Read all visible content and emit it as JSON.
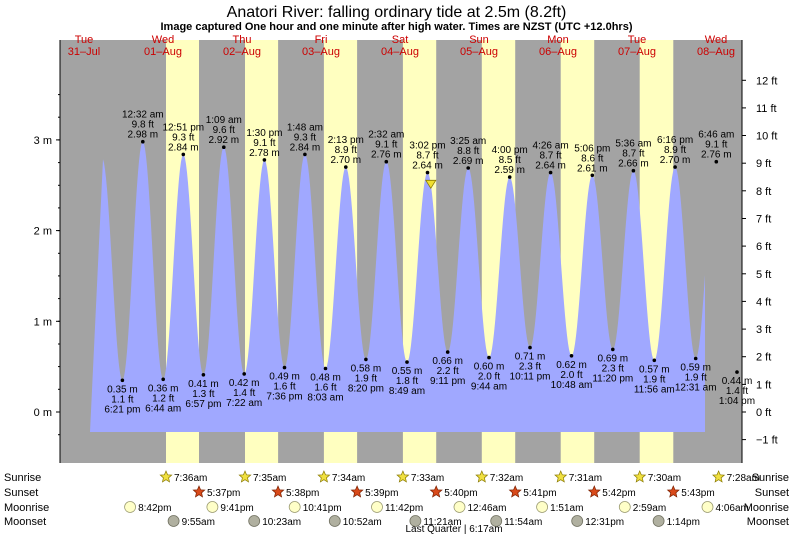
{
  "header": {
    "title": "Anatori River: falling  ordinary tide at 2.5m (8.2ft)",
    "subtitle": "Image captured One hour and one minute after high water. Times are NZST (UTC +12.0hrs)"
  },
  "colors": {
    "night": "#a3a3a3",
    "day": "#ffffc0",
    "water": "#a0a8ff",
    "day_label": "#cc0000",
    "marker": "#f0e030"
  },
  "chart_data": {
    "type": "area",
    "y_axis_left": {
      "unit": "m",
      "ticks": [
        "0 m",
        "1 m",
        "2 m",
        "3 m"
      ],
      "values": [
        0,
        1,
        2,
        3
      ]
    },
    "y_axis_right": {
      "unit": "ft",
      "ticks": [
        "−1 ft",
        "0 ft",
        "1 ft",
        "2 ft",
        "3 ft",
        "4 ft",
        "5 ft",
        "6 ft",
        "7 ft",
        "8 ft",
        "9 ft",
        "10 ft",
        "11 ft",
        "12 ft"
      ],
      "values": [
        -1,
        0,
        1,
        2,
        3,
        4,
        5,
        6,
        7,
        8,
        9,
        10,
        11,
        12
      ]
    },
    "ylim_m": [
      -0.3,
      3.65
    ],
    "x_start": "2018-07-31T00:00",
    "x_end": "2018-08-08T24:00",
    "days": [
      {
        "weekday": "Tue",
        "date": "31–Jul"
      },
      {
        "weekday": "Wed",
        "date": "01–Aug"
      },
      {
        "weekday": "Thu",
        "date": "02–Aug"
      },
      {
        "weekday": "Fri",
        "date": "03–Aug"
      },
      {
        "weekday": "Sat",
        "date": "04–Aug"
      },
      {
        "weekday": "Sun",
        "date": "05–Aug"
      },
      {
        "weekday": "Mon",
        "date": "06–Aug"
      },
      {
        "weekday": "Tue",
        "date": "07–Aug"
      },
      {
        "weekday": "Wed",
        "date": "08–Aug"
      }
    ],
    "tides": [
      {
        "kind": "low",
        "day": 0,
        "time": "6:21 pm",
        "m": "0.35 m",
        "ft": "1.1 ft",
        "value": 0.35
      },
      {
        "kind": "high",
        "day": 1,
        "time": "12:32 am",
        "m": "2.98 m",
        "ft": "9.8 ft",
        "value": 2.98
      },
      {
        "kind": "low",
        "day": 1,
        "time": "6:44 am",
        "m": "0.36 m",
        "ft": "1.2 ft",
        "value": 0.36
      },
      {
        "kind": "high",
        "day": 1,
        "time": "12:51 pm",
        "m": "2.84 m",
        "ft": "9.3 ft",
        "value": 2.84
      },
      {
        "kind": "low",
        "day": 1,
        "time": "6:57 pm",
        "m": "0.41 m",
        "ft": "1.3 ft",
        "value": 0.41
      },
      {
        "kind": "high",
        "day": 2,
        "time": "1:09 am",
        "m": "2.92 m",
        "ft": "9.6 ft",
        "value": 2.92
      },
      {
        "kind": "low",
        "day": 2,
        "time": "7:22 am",
        "m": "0.42 m",
        "ft": "1.4 ft",
        "value": 0.42
      },
      {
        "kind": "high",
        "day": 2,
        "time": "1:30 pm",
        "m": "2.78 m",
        "ft": "9.1 ft",
        "value": 2.78
      },
      {
        "kind": "low",
        "day": 2,
        "time": "7:36 pm",
        "m": "0.49 m",
        "ft": "1.6 ft",
        "value": 0.49
      },
      {
        "kind": "high",
        "day": 3,
        "time": "1:48 am",
        "m": "2.84 m",
        "ft": "9.3 ft",
        "value": 2.84
      },
      {
        "kind": "low",
        "day": 3,
        "time": "8:03 am",
        "m": "0.48 m",
        "ft": "1.6 ft",
        "value": 0.48
      },
      {
        "kind": "high",
        "day": 3,
        "time": "2:13 pm",
        "m": "2.70 m",
        "ft": "8.9 ft",
        "value": 2.7
      },
      {
        "kind": "low",
        "day": 3,
        "time": "8:20 pm",
        "m": "0.58 m",
        "ft": "1.9 ft",
        "value": 0.58
      },
      {
        "kind": "high",
        "day": 4,
        "time": "2:32 am",
        "m": "2.76 m",
        "ft": "9.1 ft",
        "value": 2.76
      },
      {
        "kind": "low",
        "day": 4,
        "time": "8:49 am",
        "m": "0.55 m",
        "ft": "1.8 ft",
        "value": 0.55
      },
      {
        "kind": "high",
        "day": 4,
        "time": "3:02 pm",
        "m": "2.64 m",
        "ft": "8.7 ft",
        "value": 2.64
      },
      {
        "kind": "low",
        "day": 4,
        "time": "9:11 pm",
        "m": "0.66 m",
        "ft": "2.2 ft",
        "value": 0.66
      },
      {
        "kind": "high",
        "day": 5,
        "time": "3:25 am",
        "m": "2.69 m",
        "ft": "8.8 ft",
        "value": 2.69
      },
      {
        "kind": "low",
        "day": 5,
        "time": "9:44 am",
        "m": "0.60 m",
        "ft": "2.0 ft",
        "value": 0.6
      },
      {
        "kind": "high",
        "day": 5,
        "time": "4:00 pm",
        "m": "2.59 m",
        "ft": "8.5 ft",
        "value": 2.59
      },
      {
        "kind": "low",
        "day": 5,
        "time": "10:11 pm",
        "m": "0.71 m",
        "ft": "2.3 ft",
        "value": 0.71
      },
      {
        "kind": "high",
        "day": 6,
        "time": "4:26 am",
        "m": "2.64 m",
        "ft": "8.7 ft",
        "value": 2.64
      },
      {
        "kind": "low",
        "day": 6,
        "time": "10:48 am",
        "m": "0.62 m",
        "ft": "2.0 ft",
        "value": 0.62
      },
      {
        "kind": "high",
        "day": 6,
        "time": "5:06 pm",
        "m": "2.61 m",
        "ft": "8.6 ft",
        "value": 2.61
      },
      {
        "kind": "low",
        "day": 6,
        "time": "11:20 pm",
        "m": "0.69 m",
        "ft": "2.3 ft",
        "value": 0.69
      },
      {
        "kind": "high",
        "day": 7,
        "time": "5:36 am",
        "m": "2.66 m",
        "ft": "8.7 ft",
        "value": 2.66
      },
      {
        "kind": "low",
        "day": 7,
        "time": "11:56 am",
        "m": "0.57 m",
        "ft": "1.9 ft",
        "value": 0.57
      },
      {
        "kind": "high",
        "day": 7,
        "time": "6:16 pm",
        "m": "2.70 m",
        "ft": "8.9 ft",
        "value": 2.7
      },
      {
        "kind": "low",
        "day": 8,
        "time": "12:31 am",
        "m": "0.59 m",
        "ft": "1.9 ft",
        "value": 0.59
      },
      {
        "kind": "high",
        "day": 8,
        "time": "6:46 am",
        "m": "2.76 m",
        "ft": "9.1 ft",
        "value": 2.76
      },
      {
        "kind": "low",
        "day": 8,
        "time": "1:04 pm",
        "m": "0.44 m",
        "ft": "1.4 ft",
        "value": 0.44
      }
    ],
    "current_marker": {
      "day": 4,
      "time": "4:03 pm",
      "value": 2.5
    },
    "sun": [
      {
        "day": 1,
        "sunrise": "7:36am",
        "sunset": "5:37pm"
      },
      {
        "day": 2,
        "sunrise": "7:35am",
        "sunset": "5:38pm"
      },
      {
        "day": 3,
        "sunrise": "7:34am",
        "sunset": "5:39pm"
      },
      {
        "day": 4,
        "sunrise": "7:33am",
        "sunset": "5:40pm"
      },
      {
        "day": 5,
        "sunrise": "7:32am",
        "sunset": "5:41pm"
      },
      {
        "day": 6,
        "sunrise": "7:31am",
        "sunset": "5:42pm"
      },
      {
        "day": 7,
        "sunrise": "7:30am",
        "sunset": "5:43pm"
      },
      {
        "day": 8,
        "sunrise": "7:28am",
        "sunset": null
      }
    ],
    "moonrise": [
      {
        "day": 0,
        "time": "8:42pm"
      },
      {
        "day": 1,
        "time": "9:41pm"
      },
      {
        "day": 2,
        "time": "10:41pm"
      },
      {
        "day": 3,
        "time": "11:42pm"
      },
      {
        "day": 5,
        "time": "12:46am"
      },
      {
        "day": 6,
        "time": "1:51am"
      },
      {
        "day": 7,
        "time": "2:59am"
      },
      {
        "day": 8,
        "time": "4:06am"
      }
    ],
    "moonset": [
      {
        "day": 1,
        "time": "9:55am"
      },
      {
        "day": 2,
        "time": "10:23am"
      },
      {
        "day": 3,
        "time": "10:52am"
      },
      {
        "day": 4,
        "time": "11:21am"
      },
      {
        "day": 5,
        "time": "11:54am"
      },
      {
        "day": 6,
        "time": "12:31pm"
      },
      {
        "day": 7,
        "time": "1:14pm"
      }
    ],
    "moon_phase": {
      "day": 5,
      "time": "6:17am",
      "label": "Last Quarter | 6:17am"
    }
  },
  "row_labels": {
    "sunrise": "Sunrise",
    "sunset": "Sunset",
    "moonrise": "Moonrise",
    "moonset": "Moonset"
  }
}
